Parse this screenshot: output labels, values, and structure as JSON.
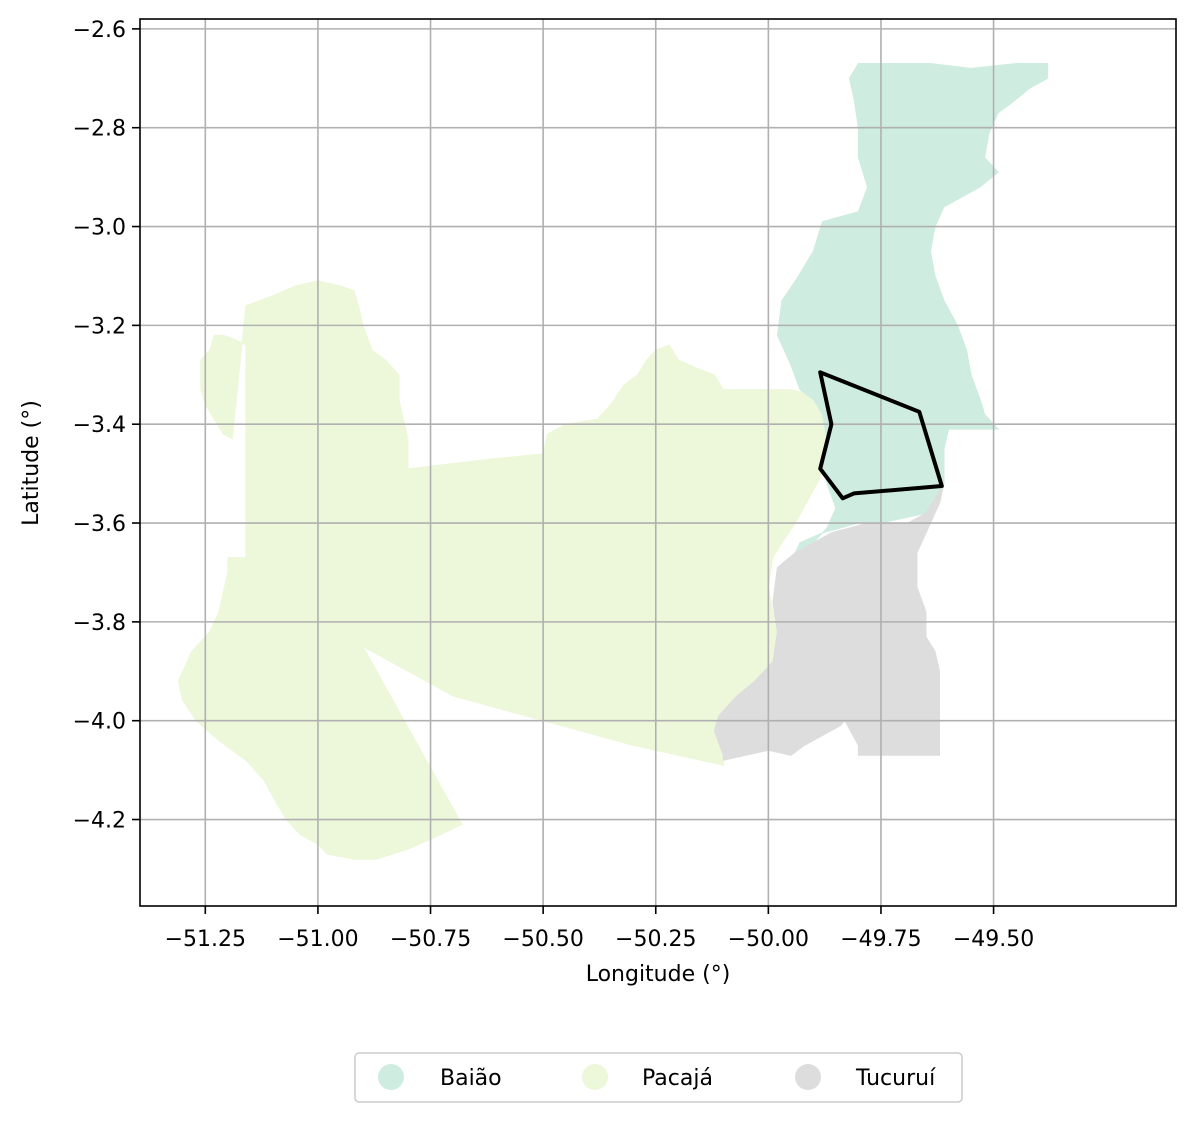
{
  "chart_data": {
    "type": "map",
    "xlabel": "Longitude (°)",
    "ylabel": "Latitude (°)",
    "xlim": [
      -51.395,
      -49.095
    ],
    "ylim": [
      -4.375,
      -2.58
    ],
    "grid": true,
    "x_ticks": [
      -51.25,
      -51.0,
      -50.75,
      -50.5,
      -50.25,
      -50.0,
      -49.75,
      -49.5
    ],
    "x_tick_labels": [
      "−51.25",
      "−51.00",
      "−50.75",
      "−50.50",
      "−50.25",
      "−50.00",
      "−49.75",
      "−49.50"
    ],
    "y_ticks": [
      -2.6,
      -2.8,
      -3.0,
      -3.2,
      -3.4,
      -3.6,
      -3.8,
      -4.0,
      -4.2
    ],
    "y_tick_labels": [
      "−2.6",
      "−2.8",
      "−3.0",
      "−3.2",
      "−3.4",
      "−3.6",
      "−3.8",
      "−4.0",
      "−4.2"
    ],
    "legend_placement": "bottom-center",
    "regions": [
      {
        "name": "Pacajá",
        "color": "#edf8db",
        "polygon": [
          [
            -51.16,
            -3.45
          ],
          [
            -51.16,
            -3.24
          ],
          [
            -51.18,
            -3.23
          ],
          [
            -51.21,
            -3.22
          ],
          [
            -51.23,
            -3.22
          ],
          [
            -51.24,
            -3.25
          ],
          [
            -51.26,
            -3.27
          ],
          [
            -51.26,
            -3.33
          ],
          [
            -51.25,
            -3.36
          ],
          [
            -51.23,
            -3.39
          ],
          [
            -51.21,
            -3.42
          ],
          [
            -51.19,
            -3.43
          ],
          [
            -51.16,
            -3.16
          ],
          [
            -51.1,
            -3.14
          ],
          [
            -51.05,
            -3.12
          ],
          [
            -51.0,
            -3.11
          ],
          [
            -50.95,
            -3.12
          ],
          [
            -50.92,
            -3.13
          ],
          [
            -50.91,
            -3.16
          ],
          [
            -50.9,
            -3.2
          ],
          [
            -50.88,
            -3.25
          ],
          [
            -50.85,
            -3.27
          ],
          [
            -50.82,
            -3.3
          ],
          [
            -50.82,
            -3.35
          ],
          [
            -50.81,
            -3.39
          ],
          [
            -50.8,
            -3.43
          ],
          [
            -50.8,
            -3.49
          ],
          [
            -50.61,
            -3.47
          ],
          [
            -50.5,
            -3.46
          ],
          [
            -50.49,
            -3.42
          ],
          [
            -50.45,
            -3.4
          ],
          [
            -50.38,
            -3.39
          ],
          [
            -50.35,
            -3.36
          ],
          [
            -50.32,
            -3.32
          ],
          [
            -50.29,
            -3.3
          ],
          [
            -50.27,
            -3.27
          ],
          [
            -50.25,
            -3.25
          ],
          [
            -50.22,
            -3.24
          ],
          [
            -50.2,
            -3.27
          ],
          [
            -50.15,
            -3.29
          ],
          [
            -50.12,
            -3.3
          ],
          [
            -50.1,
            -3.33
          ],
          [
            -50.05,
            -3.33
          ],
          [
            -50.0,
            -3.33
          ],
          [
            -49.95,
            -3.33
          ],
          [
            -49.9,
            -3.34
          ],
          [
            -49.87,
            -3.38
          ],
          [
            -49.86,
            -3.43
          ],
          [
            -49.85,
            -3.47
          ],
          [
            -49.88,
            -3.5
          ],
          [
            -49.91,
            -3.55
          ],
          [
            -49.94,
            -3.6
          ],
          [
            -49.97,
            -3.64
          ],
          [
            -49.99,
            -3.67
          ],
          [
            -50.0,
            -3.73
          ],
          [
            -49.99,
            -3.78
          ],
          [
            -49.97,
            -3.83
          ],
          [
            -49.98,
            -3.86
          ],
          [
            -50.0,
            -3.9
          ],
          [
            -50.02,
            -3.92
          ],
          [
            -50.05,
            -3.94
          ],
          [
            -50.08,
            -3.96
          ],
          [
            -50.11,
            -3.99
          ],
          [
            -50.12,
            -4.02
          ],
          [
            -50.1,
            -4.07
          ],
          [
            -50.1,
            -4.09
          ],
          [
            -50.3,
            -4.05
          ],
          [
            -50.5,
            -4.0
          ],
          [
            -50.7,
            -3.95
          ],
          [
            -50.9,
            -3.85
          ],
          [
            -50.68,
            -4.21
          ],
          [
            -50.75,
            -4.24
          ],
          [
            -50.8,
            -4.26
          ],
          [
            -50.87,
            -4.28
          ],
          [
            -50.92,
            -4.28
          ],
          [
            -50.98,
            -4.27
          ],
          [
            -51.0,
            -4.25
          ],
          [
            -51.04,
            -4.23
          ],
          [
            -51.07,
            -4.2
          ],
          [
            -51.09,
            -4.17
          ],
          [
            -51.12,
            -4.12
          ],
          [
            -51.16,
            -4.08
          ],
          [
            -51.22,
            -4.04
          ],
          [
            -51.27,
            -4.0
          ],
          [
            -51.3,
            -3.96
          ],
          [
            -51.31,
            -3.92
          ],
          [
            -51.28,
            -3.86
          ],
          [
            -51.24,
            -3.82
          ],
          [
            -51.22,
            -3.78
          ],
          [
            -51.2,
            -3.7
          ],
          [
            -51.2,
            -3.67
          ],
          [
            -51.16,
            -3.67
          ]
        ]
      },
      {
        "name": "Baião",
        "color": "#cfece0",
        "polygon": [
          [
            -49.8,
            -2.67
          ],
          [
            -49.72,
            -2.67
          ],
          [
            -49.64,
            -2.67
          ],
          [
            -49.55,
            -2.68
          ],
          [
            -49.45,
            -2.67
          ],
          [
            -49.38,
            -2.67
          ],
          [
            -49.38,
            -2.7
          ],
          [
            -49.42,
            -2.72
          ],
          [
            -49.46,
            -2.75
          ],
          [
            -49.49,
            -2.77
          ],
          [
            -49.51,
            -2.81
          ],
          [
            -49.52,
            -2.86
          ],
          [
            -49.49,
            -2.89
          ],
          [
            -49.53,
            -2.92
          ],
          [
            -49.57,
            -2.94
          ],
          [
            -49.61,
            -2.96
          ],
          [
            -49.63,
            -3.0
          ],
          [
            -49.64,
            -3.05
          ],
          [
            -49.63,
            -3.1
          ],
          [
            -49.61,
            -3.15
          ],
          [
            -49.58,
            -3.2
          ],
          [
            -49.56,
            -3.25
          ],
          [
            -49.55,
            -3.3
          ],
          [
            -49.53,
            -3.35
          ],
          [
            -49.52,
            -3.38
          ],
          [
            -49.49,
            -3.41
          ],
          [
            -49.6,
            -3.41
          ],
          [
            -49.61,
            -3.45
          ],
          [
            -49.61,
            -3.52
          ],
          [
            -49.63,
            -3.55
          ],
          [
            -49.65,
            -3.58
          ],
          [
            -49.7,
            -3.59
          ],
          [
            -49.75,
            -3.6
          ],
          [
            -49.8,
            -3.6
          ],
          [
            -49.84,
            -3.61
          ],
          [
            -49.88,
            -3.62
          ],
          [
            -49.93,
            -3.64
          ],
          [
            -49.95,
            -3.68
          ],
          [
            -49.93,
            -3.66
          ],
          [
            -49.9,
            -3.64
          ],
          [
            -49.87,
            -3.61
          ],
          [
            -49.85,
            -3.57
          ],
          [
            -49.87,
            -3.52
          ],
          [
            -49.88,
            -3.48
          ],
          [
            -49.87,
            -3.43
          ],
          [
            -49.88,
            -3.38
          ],
          [
            -49.9,
            -3.35
          ],
          [
            -49.93,
            -3.33
          ],
          [
            -49.95,
            -3.28
          ],
          [
            -49.98,
            -3.22
          ],
          [
            -49.97,
            -3.15
          ],
          [
            -49.94,
            -3.11
          ],
          [
            -49.9,
            -3.05
          ],
          [
            -49.88,
            -2.99
          ],
          [
            -49.8,
            -2.97
          ],
          [
            -49.78,
            -2.92
          ],
          [
            -49.8,
            -2.86
          ],
          [
            -49.8,
            -2.8
          ],
          [
            -49.81,
            -2.74
          ],
          [
            -49.82,
            -2.7
          ]
        ]
      },
      {
        "name": "Tucuruí",
        "color": "#dddddd",
        "polygon": [
          [
            -49.61,
            -3.52
          ],
          [
            -49.65,
            -3.58
          ],
          [
            -49.69,
            -3.6
          ],
          [
            -49.74,
            -3.6
          ],
          [
            -49.78,
            -3.6
          ],
          [
            -49.82,
            -3.61
          ],
          [
            -49.86,
            -3.62
          ],
          [
            -49.9,
            -3.64
          ],
          [
            -49.94,
            -3.66
          ],
          [
            -49.98,
            -3.69
          ],
          [
            -49.99,
            -3.76
          ],
          [
            -49.98,
            -3.82
          ],
          [
            -49.99,
            -3.88
          ],
          [
            -50.03,
            -3.92
          ],
          [
            -50.07,
            -3.95
          ],
          [
            -50.11,
            -3.99
          ],
          [
            -50.12,
            -4.02
          ],
          [
            -50.1,
            -4.07
          ],
          [
            -50.1,
            -4.08
          ],
          [
            -50.05,
            -4.07
          ],
          [
            -50.0,
            -4.06
          ],
          [
            -49.95,
            -4.07
          ],
          [
            -49.92,
            -4.05
          ],
          [
            -49.88,
            -4.03
          ],
          [
            -49.84,
            -4.01
          ],
          [
            -49.83,
            -4.0
          ],
          [
            -49.8,
            -4.05
          ],
          [
            -49.8,
            -4.07
          ],
          [
            -49.76,
            -4.07
          ],
          [
            -49.7,
            -4.07
          ],
          [
            -49.65,
            -4.07
          ],
          [
            -49.62,
            -4.07
          ],
          [
            -49.62,
            -4.05
          ],
          [
            -49.62,
            -4.0
          ],
          [
            -49.62,
            -3.95
          ],
          [
            -49.62,
            -3.9
          ],
          [
            -49.63,
            -3.86
          ],
          [
            -49.65,
            -3.83
          ],
          [
            -49.65,
            -3.78
          ],
          [
            -49.67,
            -3.73
          ],
          [
            -49.67,
            -3.66
          ],
          [
            -49.64,
            -3.6
          ],
          [
            -49.62,
            -3.56
          ]
        ]
      }
    ],
    "outline": {
      "color": "#000000",
      "polygon": [
        [
          -49.885,
          -3.295
        ],
        [
          -49.665,
          -3.375
        ],
        [
          -49.615,
          -3.525
        ],
        [
          -49.81,
          -3.54
        ],
        [
          -49.835,
          -3.55
        ],
        [
          -49.885,
          -3.49
        ],
        [
          -49.86,
          -3.4
        ]
      ]
    }
  },
  "legend": {
    "items": [
      {
        "label": "Baião",
        "color": "#cfece0"
      },
      {
        "label": "Pacajá",
        "color": "#edf8db"
      },
      {
        "label": "Tucuruí",
        "color": "#dddddd"
      }
    ]
  }
}
